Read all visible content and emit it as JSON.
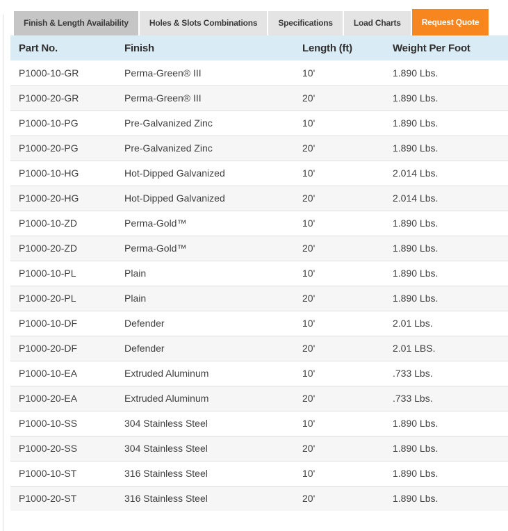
{
  "colors": {
    "accent_orange": "#f6861d",
    "active_tab_bg": "#c5c5c5",
    "inactive_tab_bg": "#e4e4e4",
    "header_bg": "#d9ebf4",
    "row_alt_bg": "#f6f6f6",
    "border": "#dedede",
    "text": "#3f3f3f"
  },
  "tabs": {
    "items": [
      {
        "label": "Finish & Length Availability",
        "active": true,
        "style": "active"
      },
      {
        "label": "Holes & Slots Combinations",
        "active": false,
        "style": "normal"
      },
      {
        "label": "Specifications",
        "active": false,
        "style": "normal"
      },
      {
        "label": "Load Charts",
        "active": false,
        "style": "normal"
      },
      {
        "label": "Request Quote",
        "active": false,
        "style": "quote"
      }
    ]
  },
  "table": {
    "columns": [
      "Part No.",
      "Finish",
      "Length (ft)",
      "Weight Per Foot"
    ],
    "rows": [
      {
        "part_no": "P1000-10-GR",
        "finish": "Perma-Green® III",
        "length": "10'",
        "weight": "1.890 Lbs."
      },
      {
        "part_no": "P1000-20-GR",
        "finish": "Perma-Green® III",
        "length": "20'",
        "weight": "1.890 Lbs."
      },
      {
        "part_no": "P1000-10-PG",
        "finish": "Pre-Galvanized Zinc",
        "length": "10'",
        "weight": "1.890 Lbs."
      },
      {
        "part_no": "P1000-20-PG",
        "finish": "Pre-Galvanized Zinc",
        "length": "20'",
        "weight": "1.890 Lbs."
      },
      {
        "part_no": "P1000-10-HG",
        "finish": "Hot-Dipped Galvanized",
        "length": "10'",
        "weight": "2.014 Lbs."
      },
      {
        "part_no": "P1000-20-HG",
        "finish": "Hot-Dipped Galvanized",
        "length": "20'",
        "weight": "2.014 Lbs."
      },
      {
        "part_no": "P1000-10-ZD",
        "finish": "Perma-Gold™",
        "length": "10'",
        "weight": "1.890 Lbs."
      },
      {
        "part_no": "P1000-20-ZD",
        "finish": "Perma-Gold™",
        "length": "20'",
        "weight": "1.890 Lbs."
      },
      {
        "part_no": "P1000-10-PL",
        "finish": "Plain",
        "length": "10'",
        "weight": "1.890 Lbs."
      },
      {
        "part_no": "P1000-20-PL",
        "finish": "Plain",
        "length": "20'",
        "weight": "1.890 Lbs."
      },
      {
        "part_no": "P1000-10-DF",
        "finish": "Defender",
        "length": "10'",
        "weight": "2.01 Lbs."
      },
      {
        "part_no": "P1000-20-DF",
        "finish": "Defender",
        "length": "20'",
        "weight": "2.01 LBS."
      },
      {
        "part_no": "P1000-10-EA",
        "finish": "Extruded Aluminum",
        "length": "10'",
        "weight": ".733 Lbs."
      },
      {
        "part_no": "P1000-20-EA",
        "finish": "Extruded Aluminum",
        "length": "20'",
        "weight": ".733 Lbs."
      },
      {
        "part_no": "P1000-10-SS",
        "finish": "304 Stainless Steel",
        "length": "10'",
        "weight": "1.890 Lbs."
      },
      {
        "part_no": "P1000-20-SS",
        "finish": "304 Stainless Steel",
        "length": "20'",
        "weight": "1.890 Lbs."
      },
      {
        "part_no": "P1000-10-ST",
        "finish": "316 Stainless Steel",
        "length": "10'",
        "weight": "1.890 Lbs."
      },
      {
        "part_no": "P1000-20-ST",
        "finish": "316 Stainless Steel",
        "length": "20'",
        "weight": "1.890 Lbs."
      }
    ]
  }
}
